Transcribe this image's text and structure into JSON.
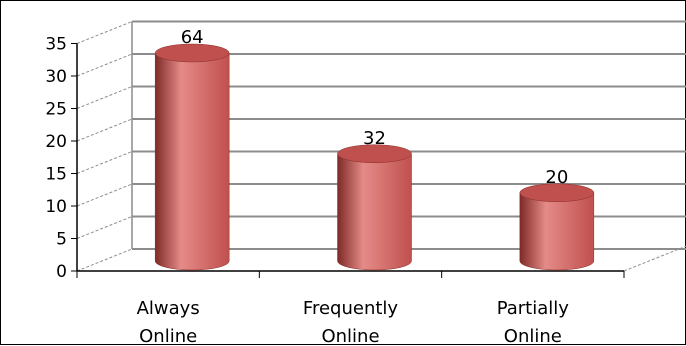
{
  "chart_data": {
    "type": "bar",
    "style": "3d-cylinder",
    "categories": [
      [
        "Always",
        "Online"
      ],
      [
        "Frequently",
        "Online"
      ],
      [
        "Partially",
        "Online"
      ]
    ],
    "values": [
      32,
      16.5,
      10.5
    ],
    "data_labels": [
      "64",
      "32",
      "20"
    ],
    "ylim": [
      0,
      35
    ],
    "yticks": [
      "0",
      "5",
      "10",
      "15",
      "20",
      "25",
      "30",
      "35"
    ],
    "grid": true,
    "legend": "none",
    "colors": {
      "bar": "#c0504d",
      "bar_dark": "#7f2a28",
      "bar_light": "#e58b88",
      "grid": "#8c8c8c",
      "axis": "#000000"
    }
  }
}
